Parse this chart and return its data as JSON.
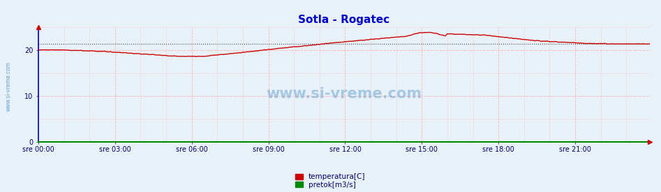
{
  "title": "Sotla - Rogatec",
  "title_color": "#0000cc",
  "title_fontsize": 11,
  "bg_color": "#e8f0f8",
  "plot_bg_color": "#e8f0f8",
  "outer_bg_color": "#e8f0f8",
  "xlabel_color": "#000066",
  "ylabel_color": "#000066",
  "yticks": [
    0,
    10,
    20
  ],
  "ylim": [
    0,
    25
  ],
  "xlim": [
    0,
    287
  ],
  "xtick_labels": [
    "sre 00:00",
    "sre 03:00",
    "sre 06:00",
    "sre 09:00",
    "sre 12:00",
    "sre 15:00",
    "sre 18:00",
    "sre 21:00"
  ],
  "xtick_positions": [
    0,
    36,
    72,
    108,
    144,
    180,
    216,
    252
  ],
  "grid_color_h": "#ffaaaa",
  "grid_color_v": "#ffaaaa",
  "avg_line_color": "#333333",
  "avg_line_value": 21.3,
  "temp_color": "#cc0000",
  "flow_color": "#008800",
  "watermark_color": "#5599cc",
  "legend_temp_color": "#cc0000",
  "legend_flow_color": "#008800",
  "legend_temp_label": "temperatura[C]",
  "legend_flow_label": "pretok[m3/s]",
  "left_label": "www.si-vreme.com",
  "left_label_color": "#5599cc",
  "spine_left_color": "#0000cc",
  "spine_bottom_color": "#008800",
  "arrow_top_color": "#cc0000",
  "arrow_right_color": "#cc0000"
}
